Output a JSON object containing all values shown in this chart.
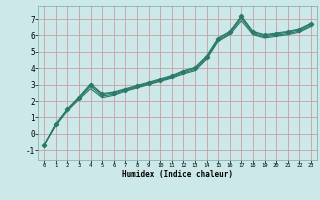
{
  "title": "",
  "xlabel": "Humidex (Indice chaleur)",
  "background_color": "#cce8e8",
  "grid_color": "#c8a0a0",
  "line_color": "#2a7a6a",
  "xlim": [
    -0.5,
    23.5
  ],
  "ylim": [
    -1.6,
    7.8
  ],
  "yticks": [
    -1,
    0,
    1,
    2,
    3,
    4,
    5,
    6,
    7
  ],
  "xticks": [
    0,
    1,
    2,
    3,
    4,
    5,
    6,
    7,
    8,
    9,
    10,
    11,
    12,
    13,
    14,
    15,
    16,
    17,
    18,
    19,
    20,
    21,
    22,
    23
  ],
  "main_x": [
    0,
    1,
    2,
    3,
    4,
    5,
    6,
    7,
    8,
    9,
    10,
    11,
    12,
    13,
    14,
    15,
    16,
    17,
    18,
    19,
    20,
    21,
    22,
    23
  ],
  "main_y": [
    -0.7,
    0.6,
    1.5,
    2.2,
    3.0,
    2.4,
    2.5,
    2.7,
    2.9,
    3.1,
    3.3,
    3.5,
    3.8,
    4.0,
    4.7,
    5.8,
    6.2,
    7.2,
    6.2,
    6.0,
    6.1,
    6.2,
    6.35,
    6.7
  ],
  "line2_x": [
    0,
    1,
    2,
    3,
    4,
    5,
    6,
    7,
    8,
    9,
    10,
    11,
    12,
    13,
    14,
    15,
    16,
    17,
    18,
    19,
    20,
    21,
    22,
    23
  ],
  "line2_y": [
    -0.7,
    0.5,
    1.4,
    2.1,
    2.75,
    2.2,
    2.35,
    2.6,
    2.8,
    3.0,
    3.2,
    3.4,
    3.65,
    3.85,
    4.55,
    5.65,
    6.05,
    6.9,
    6.05,
    5.85,
    5.95,
    6.05,
    6.2,
    6.55
  ],
  "line3_x": [
    0,
    1,
    2,
    3,
    4,
    5,
    6,
    7,
    8,
    9,
    10,
    11,
    12,
    13,
    14,
    15,
    16,
    17,
    18,
    19,
    20,
    21,
    22,
    23
  ],
  "line3_y": [
    -0.7,
    0.55,
    1.45,
    2.15,
    2.9,
    2.3,
    2.42,
    2.65,
    2.85,
    3.05,
    3.25,
    3.45,
    3.72,
    3.92,
    4.62,
    5.72,
    6.12,
    7.05,
    6.12,
    5.92,
    6.02,
    6.12,
    6.27,
    6.62
  ],
  "line4_x": [
    0,
    1,
    2,
    3,
    4,
    5,
    6,
    7,
    8,
    9,
    10,
    11,
    12,
    13,
    14,
    15,
    16,
    17,
    18,
    19,
    20,
    21,
    22,
    23
  ],
  "line4_y": [
    -0.7,
    0.58,
    1.52,
    2.25,
    3.05,
    2.45,
    2.55,
    2.75,
    2.95,
    3.15,
    3.35,
    3.55,
    3.85,
    4.05,
    4.75,
    5.85,
    6.25,
    7.15,
    6.25,
    6.05,
    6.15,
    6.25,
    6.4,
    6.75
  ],
  "marker_x": [
    0,
    1,
    2,
    3,
    4,
    5,
    6,
    7,
    8,
    9,
    10,
    11,
    12,
    13,
    14,
    15,
    16,
    17,
    18,
    19,
    20,
    21,
    22,
    23
  ],
  "marker_y": [
    -0.7,
    0.6,
    1.5,
    2.2,
    3.0,
    2.4,
    2.5,
    2.7,
    2.9,
    3.1,
    3.3,
    3.5,
    3.8,
    4.0,
    4.7,
    5.8,
    6.2,
    7.2,
    6.2,
    6.0,
    6.1,
    6.2,
    6.35,
    6.7
  ],
  "lw": 0.8,
  "ms": 2.2
}
